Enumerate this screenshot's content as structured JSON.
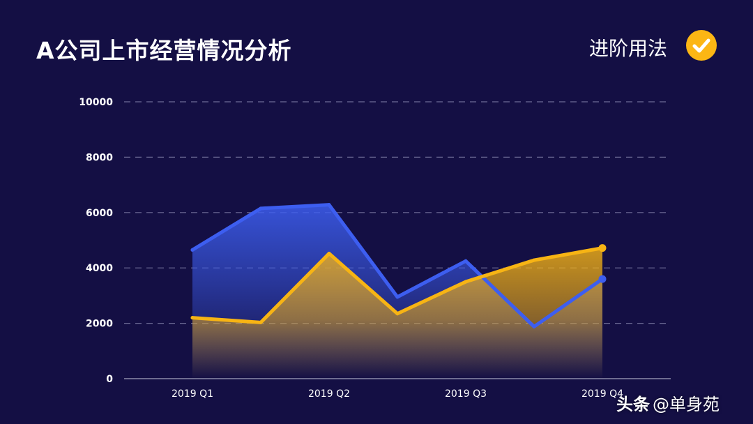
{
  "header": {
    "title": "A公司上市经营情况分析",
    "badge": "进阶用法"
  },
  "icons": {
    "badge_icon": "check-circle-icon"
  },
  "colors": {
    "background": "#140f44",
    "blue": "#3d5ef0",
    "gold": "#f7b414",
    "grid": "#6e6c96",
    "accent": "#fcb614"
  },
  "watermark": {
    "brand": "头条",
    "handle": "@单身苑"
  },
  "chart_data": {
    "type": "area",
    "title": "",
    "xlabel": "",
    "ylabel": "",
    "ylim": [
      0,
      10000
    ],
    "yticks": [
      0,
      2000,
      4000,
      6000,
      8000,
      10000
    ],
    "xtick_labels": [
      "2019 Q1",
      "2019 Q2",
      "2019 Q3",
      "2019 Q4"
    ],
    "x": [
      1,
      1.5,
      2,
      2.5,
      3,
      3.5,
      4
    ],
    "grid": true,
    "legend": "none",
    "series": [
      {
        "color": "#3d5ef0",
        "values": [
          4650,
          6150,
          6280,
          2950,
          4250,
          1880,
          3600
        ]
      },
      {
        "color": "#f7b414",
        "values": [
          2200,
          2030,
          4520,
          2350,
          3500,
          4280,
          4720
        ]
      }
    ]
  }
}
